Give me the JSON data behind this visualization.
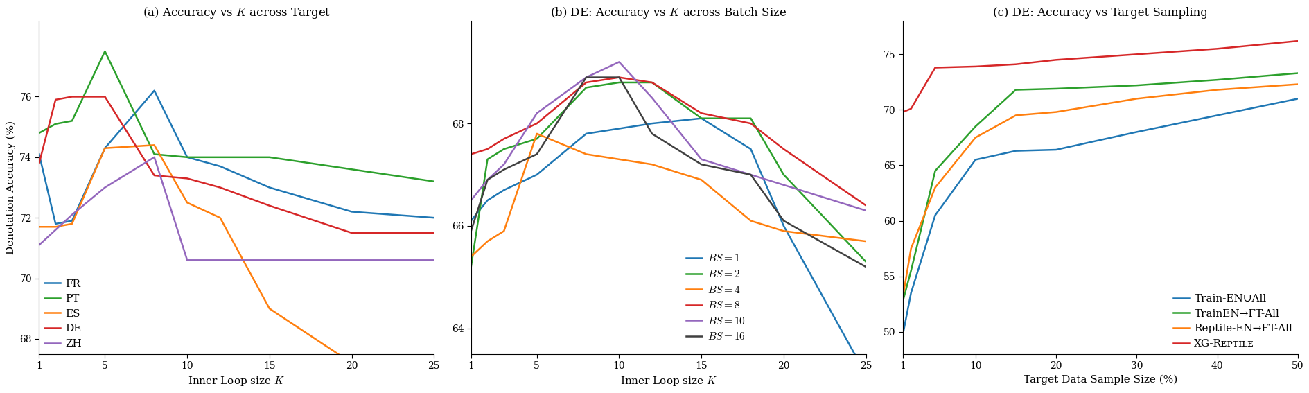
{
  "panel_a": {
    "title": "(a) Accuracy vs $K$ across Target",
    "xlabel": "Inner Loop size $K$",
    "ylabel": "Denotation Accuracy (%)",
    "x": [
      1,
      2,
      3,
      5,
      8,
      10,
      12,
      15,
      20,
      25
    ],
    "series": [
      {
        "label": "FR",
        "color": "#1f77b4",
        "y": [
          74.1,
          71.8,
          71.9,
          74.3,
          76.2,
          74.0,
          73.7,
          73.0,
          72.2,
          72.0
        ]
      },
      {
        "label": "PT",
        "color": "#2ca02c",
        "y": [
          74.8,
          75.1,
          75.2,
          77.5,
          74.1,
          74.0,
          74.0,
          74.0,
          73.6,
          73.2
        ]
      },
      {
        "label": "ES",
        "color": "#ff7f0e",
        "y": [
          71.7,
          71.7,
          71.8,
          74.3,
          74.4,
          72.5,
          72.0,
          69.0,
          67.2,
          67.1
        ]
      },
      {
        "label": "DE",
        "color": "#d62728",
        "y": [
          73.8,
          75.9,
          76.0,
          76.0,
          73.4,
          73.3,
          73.0,
          72.4,
          71.5,
          71.5
        ]
      },
      {
        "label": "ZH",
        "color": "#9467bd",
        "y": [
          71.1,
          71.6,
          72.1,
          73.0,
          74.0,
          70.6,
          70.6,
          70.6,
          70.6,
          70.6
        ]
      }
    ],
    "ylim": [
      67.5,
      78.5
    ],
    "yticks": [
      68,
      70,
      72,
      74,
      76
    ],
    "xticks": [
      1,
      5,
      10,
      15,
      20,
      25
    ]
  },
  "panel_b": {
    "title": "(b) DE: Accuracy vs $K$ across Batch Size",
    "xlabel": "Inner Loop size $K$",
    "ylabel": "",
    "x": [
      1,
      2,
      3,
      5,
      8,
      10,
      12,
      15,
      18,
      20,
      25
    ],
    "series": [
      {
        "label": "$BS = 1$",
        "color": "#1f77b4",
        "y": [
          66.1,
          66.5,
          66.7,
          67.0,
          67.8,
          67.9,
          68.0,
          68.1,
          67.5,
          66.0,
          63.1
        ]
      },
      {
        "label": "$BS = 2$",
        "color": "#2ca02c",
        "y": [
          65.2,
          67.3,
          67.5,
          67.7,
          68.7,
          68.8,
          68.8,
          68.1,
          68.1,
          67.0,
          65.3
        ]
      },
      {
        "label": "$BS = 4$",
        "color": "#ff7f0e",
        "y": [
          65.4,
          65.7,
          65.9,
          67.8,
          67.4,
          67.3,
          67.2,
          66.9,
          66.1,
          65.9,
          65.7
        ]
      },
      {
        "label": "$BS = 8$",
        "color": "#d62728",
        "y": [
          67.4,
          67.5,
          67.7,
          68.0,
          68.8,
          68.9,
          68.8,
          68.2,
          68.0,
          67.5,
          66.4
        ]
      },
      {
        "label": "$BS = 10$",
        "color": "#9467bd",
        "y": [
          66.5,
          66.9,
          67.2,
          68.2,
          68.9,
          69.2,
          68.5,
          67.3,
          67.0,
          66.8,
          66.3
        ]
      },
      {
        "label": "$BS = 16$",
        "color": "#404040",
        "y": [
          65.9,
          66.9,
          67.1,
          67.4,
          68.9,
          68.9,
          67.8,
          67.2,
          67.0,
          66.1,
          65.2
        ]
      }
    ],
    "ylim": [
      63.5,
      70.0
    ],
    "yticks": [
      64,
      66,
      68
    ],
    "xticks": [
      1,
      5,
      10,
      15,
      20,
      25
    ]
  },
  "panel_c": {
    "title": "(c) DE: Accuracy vs Target Sampling",
    "xlabel": "Target Data Sample Size (%)",
    "ylabel": "",
    "x": [
      1,
      2,
      5,
      10,
      15,
      20,
      30,
      40,
      50
    ],
    "series": [
      {
        "label": "Train-EN∪All",
        "color": "#1f77b4",
        "y": [
          49.8,
          53.5,
          60.5,
          65.5,
          66.3,
          66.4,
          68.0,
          69.5,
          71.0
        ]
      },
      {
        "label": "TrainEN→FT-All",
        "color": "#2ca02c",
        "y": [
          52.8,
          55.5,
          64.5,
          68.5,
          71.8,
          71.9,
          72.2,
          72.7,
          73.3
        ]
      },
      {
        "label": "Reptile-EN→FT-All",
        "color": "#ff7f0e",
        "y": [
          53.2,
          57.5,
          63.0,
          67.5,
          69.5,
          69.8,
          71.0,
          71.8,
          72.3
        ]
      },
      {
        "label": "XG-Reptile",
        "color": "#d62728",
        "y": [
          69.8,
          70.1,
          73.8,
          73.9,
          74.1,
          74.5,
          75.0,
          75.5,
          76.2
        ]
      }
    ],
    "ylim": [
      48,
      78
    ],
    "yticks": [
      50,
      55,
      60,
      65,
      70,
      75
    ],
    "xticks": [
      1,
      10,
      20,
      30,
      40,
      50
    ]
  },
  "figsize": [
    18.9,
    5.67
  ],
  "dpi": 100,
  "lw": 1.8,
  "title_fontsize": 12,
  "label_fontsize": 11,
  "tick_fontsize": 10,
  "legend_fontsize": 11
}
